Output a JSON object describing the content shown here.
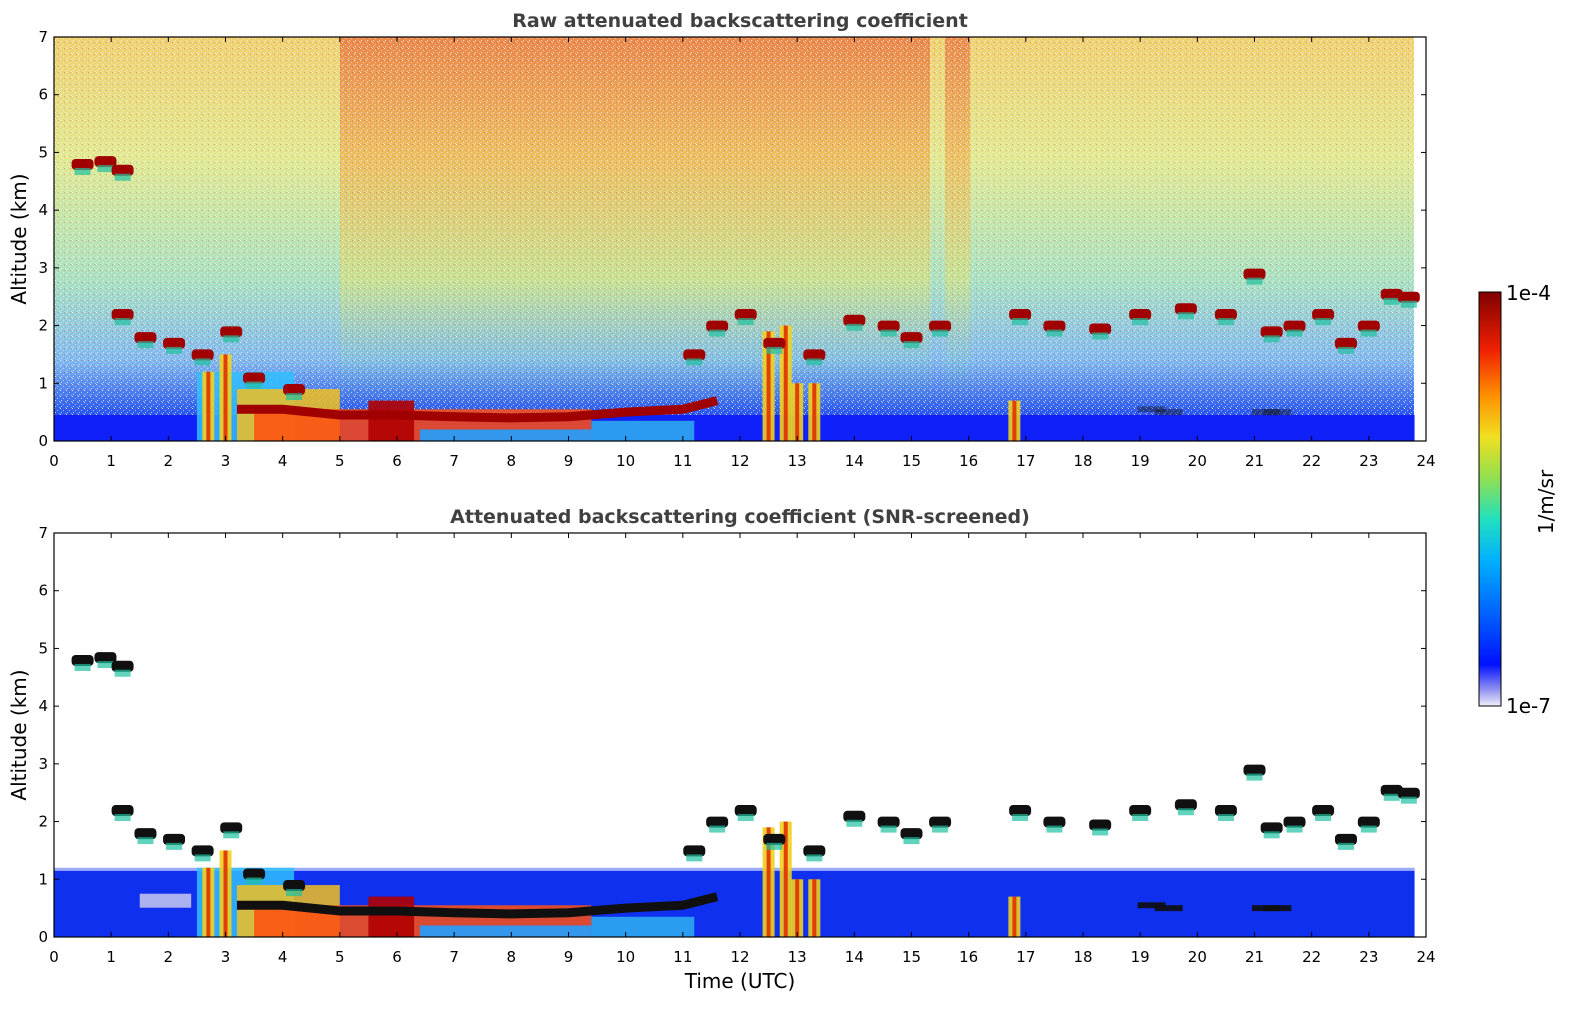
{
  "chart_data": [
    {
      "type": "heatmap",
      "title": "Raw attenuated backscattering coefficient",
      "xlabel": "",
      "ylabel": "Altitude (km)",
      "xlim": [
        0,
        24
      ],
      "ylim": [
        0,
        7
      ],
      "xticks": [
        "0",
        "1",
        "2",
        "3",
        "4",
        "5",
        "6",
        "7",
        "8",
        "9",
        "10",
        "11",
        "12",
        "13",
        "14",
        "15",
        "16",
        "17",
        "18",
        "19",
        "20",
        "21",
        "22",
        "23",
        "24"
      ],
      "yticks": [
        "0",
        "1",
        "2",
        "3",
        "4",
        "5",
        "6",
        "7"
      ],
      "data_extent_hours": 23.8,
      "features": {
        "boundary_layer": [
          [
            3.2,
            0.55
          ],
          [
            4,
            0.55
          ],
          [
            5,
            0.45
          ],
          [
            6,
            0.45
          ],
          [
            7,
            0.42
          ],
          [
            8,
            0.4
          ],
          [
            9,
            0.42
          ],
          [
            10,
            0.5
          ],
          [
            11,
            0.55
          ],
          [
            11.6,
            0.7
          ]
        ],
        "cloud_segments": [
          [
            0.5,
            4.8
          ],
          [
            0.9,
            4.85
          ],
          [
            1.2,
            4.7
          ],
          [
            1.2,
            2.2
          ],
          [
            1.6,
            1.8
          ],
          [
            2.1,
            1.7
          ],
          [
            2.6,
            1.5
          ],
          [
            3.1,
            1.9
          ],
          [
            3.5,
            1.1
          ],
          [
            4.2,
            0.9
          ],
          [
            11.2,
            1.5
          ],
          [
            11.6,
            2.0
          ],
          [
            12.1,
            2.2
          ],
          [
            12.6,
            1.7
          ],
          [
            13.3,
            1.5
          ],
          [
            14.0,
            2.1
          ],
          [
            14.6,
            2.0
          ],
          [
            15.0,
            1.8
          ],
          [
            15.5,
            2.0
          ],
          [
            16.9,
            2.2
          ],
          [
            17.5,
            2.0
          ],
          [
            18.3,
            1.95
          ],
          [
            19.0,
            2.2
          ],
          [
            19.8,
            2.3
          ],
          [
            20.5,
            2.2
          ],
          [
            21.3,
            1.9
          ],
          [
            21.7,
            2.0
          ],
          [
            22.2,
            2.2
          ],
          [
            22.6,
            1.7
          ],
          [
            23.0,
            2.0
          ],
          [
            23.4,
            2.55
          ],
          [
            23.7,
            2.5
          ],
          [
            21.0,
            2.9
          ]
        ],
        "columns": [
          [
            2.7,
            0,
            1.2
          ],
          [
            3.0,
            0,
            1.5
          ],
          [
            12.5,
            0,
            1.9
          ],
          [
            12.8,
            0,
            2.0
          ],
          [
            13.0,
            0,
            1.0
          ],
          [
            13.3,
            0,
            1.0
          ],
          [
            16.8,
            0,
            0.7
          ]
        ],
        "low_level": [
          [
            19.5,
            0.5
          ],
          [
            21.2,
            0.5
          ],
          [
            19.2,
            0.55
          ],
          [
            21.4,
            0.5
          ]
        ]
      }
    },
    {
      "type": "heatmap",
      "title": "Attenuated backscattering coefficient (SNR-screened)",
      "xlabel": "Time (UTC)",
      "ylabel": "Altitude (km)",
      "xlim": [
        0,
        24
      ],
      "ylim": [
        0,
        7
      ],
      "xticks": [
        "0",
        "1",
        "2",
        "3",
        "4",
        "5",
        "6",
        "7",
        "8",
        "9",
        "10",
        "11",
        "12",
        "13",
        "14",
        "15",
        "16",
        "17",
        "18",
        "19",
        "20",
        "21",
        "22",
        "23",
        "24"
      ],
      "yticks": [
        "0",
        "1",
        "2",
        "3",
        "4",
        "5",
        "6",
        "7"
      ]
    }
  ],
  "colorbar": {
    "max_label": "1e-4",
    "min_label": "1e-7",
    "unit_label": "1/m/sr",
    "scale": "log",
    "colors": [
      "#e8e8f8",
      "#0010ff",
      "#00a0ff",
      "#20e0d0",
      "#80e060",
      "#f0e020",
      "#ff8000",
      "#e01000",
      "#7f0000"
    ]
  }
}
